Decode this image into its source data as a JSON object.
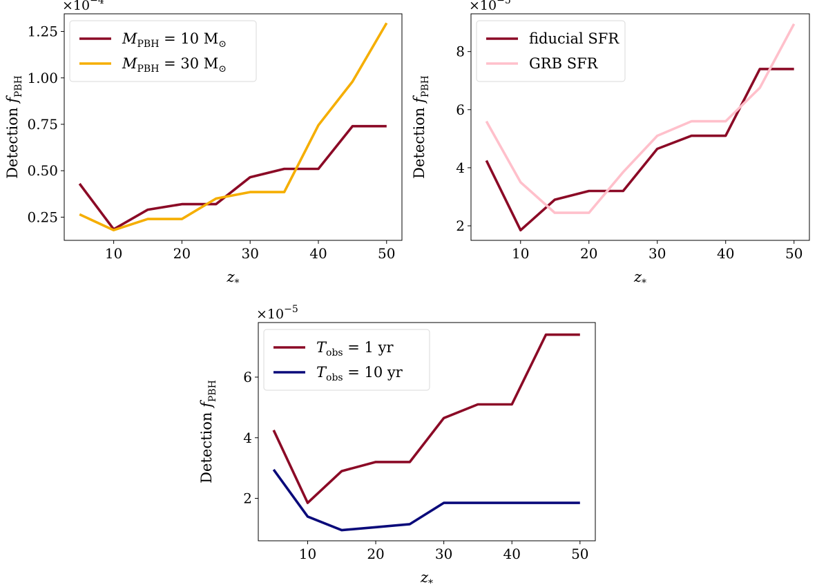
{
  "panels": [
    {
      "chart_data": {
        "type": "line",
        "xlabel": "z*",
        "ylabel": "Detection fPBH",
        "multiplier": "×10",
        "multiplier_exp": "−4",
        "xlim": [
          2.75,
          52.25
        ],
        "ylim": [
          0.125,
          1.345
        ],
        "xticks": [
          10,
          20,
          30,
          40,
          50
        ],
        "yticks": [
          0.25,
          0.5,
          0.75,
          1.0,
          1.25
        ],
        "ytick_labels": [
          "0.25",
          "0.50",
          "0.75",
          "1.00",
          "1.25"
        ],
        "legend_loc": "upper left",
        "series": [
          {
            "label_main": "M",
            "label_sub": "PBH",
            "label_rest": " = 10 M",
            "label_tail": "⊙",
            "color": "#8b0a26",
            "x": [
              5,
              10,
              15,
              20,
              25,
              30,
              35,
              40,
              45,
              50
            ],
            "y": [
              0.43,
              0.185,
              0.29,
              0.32,
              0.32,
              0.465,
              0.51,
              0.51,
              0.74,
              0.74
            ]
          },
          {
            "label_main": "M",
            "label_sub": "PBH",
            "label_rest": " = 30 M",
            "label_tail": "⊙",
            "color": "#f5ae00",
            "x": [
              5,
              10,
              15,
              20,
              25,
              30,
              35,
              40,
              45,
              50
            ],
            "y": [
              0.265,
              0.18,
              0.24,
              0.24,
              0.35,
              0.385,
              0.385,
              0.745,
              0.98,
              1.295
            ]
          }
        ]
      }
    },
    {
      "chart_data": {
        "type": "line",
        "xlabel": "z*",
        "ylabel": "Detection fPBH",
        "multiplier": "×10",
        "multiplier_exp": "−5",
        "xlim": [
          2.75,
          52.25
        ],
        "ylim": [
          1.5,
          9.3
        ],
        "xticks": [
          10,
          20,
          30,
          40,
          50
        ],
        "yticks": [
          2,
          4,
          6,
          8
        ],
        "ytick_labels": [
          "2",
          "4",
          "6",
          "8"
        ],
        "legend_loc": "upper left",
        "series": [
          {
            "label_main": "fiducial SFR",
            "label_sub": "",
            "label_rest": "",
            "label_tail": "",
            "color": "#8b0a26",
            "x": [
              5,
              10,
              15,
              20,
              25,
              30,
              35,
              40,
              45,
              50
            ],
            "y": [
              4.25,
              1.85,
              2.9,
              3.2,
              3.2,
              4.65,
              5.1,
              5.1,
              7.4,
              7.4
            ]
          },
          {
            "label_main": "GRB SFR",
            "label_sub": "",
            "label_rest": "",
            "label_tail": "",
            "color": "#ffc0cb",
            "x": [
              5,
              10,
              15,
              20,
              25,
              30,
              35,
              40,
              45,
              50
            ],
            "y": [
              5.6,
              3.5,
              2.45,
              2.45,
              3.85,
              5.1,
              5.6,
              5.6,
              6.75,
              8.95
            ]
          }
        ]
      }
    },
    {
      "chart_data": {
        "type": "line",
        "xlabel": "z*",
        "ylabel": "Detection fPBH",
        "multiplier": "×10",
        "multiplier_exp": "−5",
        "xlim": [
          2.75,
          52.25
        ],
        "ylim": [
          0.6,
          7.8
        ],
        "xticks": [
          10,
          20,
          30,
          40,
          50
        ],
        "yticks": [
          2,
          4,
          6
        ],
        "ytick_labels": [
          "2",
          "4",
          "6"
        ],
        "legend_loc": "upper left",
        "series": [
          {
            "label_main": "T",
            "label_sub": "obs",
            "label_rest": " = 1 yr",
            "label_tail": "",
            "color": "#8b0a26",
            "x": [
              5,
              10,
              15,
              20,
              25,
              30,
              35,
              40,
              45,
              50
            ],
            "y": [
              4.25,
              1.85,
              2.9,
              3.2,
              3.2,
              4.65,
              5.1,
              5.1,
              7.4,
              7.4
            ]
          },
          {
            "label_main": "T",
            "label_sub": "obs",
            "label_rest": " = 10 yr",
            "label_tail": "",
            "color": "#0a0a7a",
            "x": [
              5,
              10,
              15,
              20,
              25,
              30,
              35,
              40,
              45,
              50
            ],
            "y": [
              2.95,
              1.4,
              0.95,
              1.05,
              1.15,
              1.85,
              1.85,
              1.85,
              1.85,
              1.85
            ]
          }
        ]
      }
    }
  ]
}
